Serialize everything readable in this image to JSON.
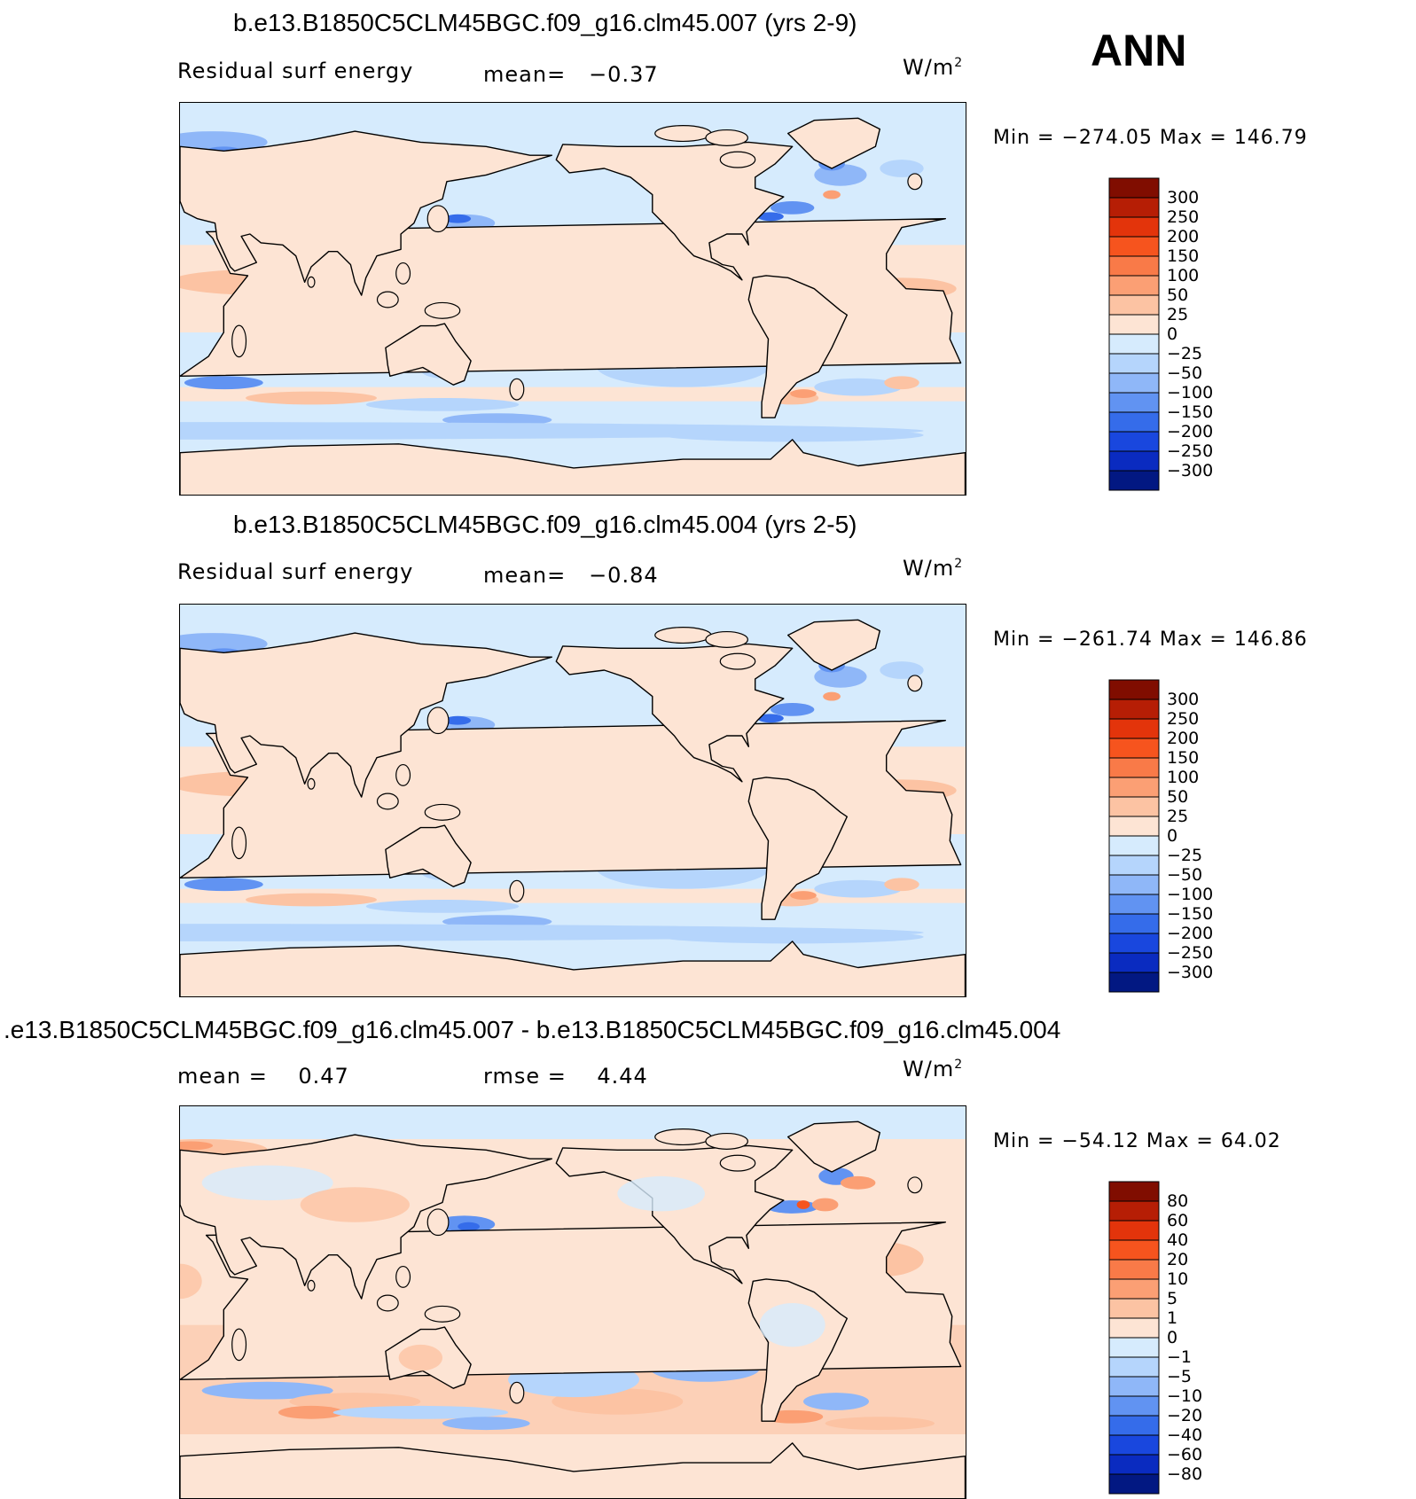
{
  "season": "ANN",
  "units_base": "W/m",
  "units_exp": "2",
  "colors": {
    "pos": [
      "#fde4d4",
      "#fcc3a3",
      "#fb9f74",
      "#f97a48",
      "#f6541e",
      "#e3340b",
      "#b61e05",
      "#800d00"
    ],
    "neg": [
      "#d6ebfd",
      "#b5d5fc",
      "#8fb7f8",
      "#6193f2",
      "#356cea",
      "#1947de",
      "#0a2bc0",
      "#021882"
    ]
  },
  "panels": [
    {
      "title": "b.e13.B1850C5CLM45BGC.f09_g16.clm45.007 (yrs 2-9)",
      "field": "Residual surf energy",
      "mean_label": "mean=",
      "mean_value": "−0.37",
      "min_label": "Min =",
      "min_value": "−274.05",
      "max_label": "Max =",
      "max_value": "146.79"
    },
    {
      "title": "b.e13.B1850C5CLM45BGC.f09_g16.clm45.004 (yrs 2-5)",
      "field": "Residual surf energy",
      "mean_label": "mean=",
      "mean_value": "−0.84",
      "min_label": "Min =",
      "min_value": "−261.74",
      "max_label": "Max =",
      "max_value": "146.86"
    },
    {
      "title": ".e13.B1850C5CLM45BGC.f09_g16.clm45.007 - b.e13.B1850C5CLM45BGC.f09_g16.clm45.004",
      "mean_label": "mean =",
      "mean_value": "0.47",
      "rmse_label": "rmse =",
      "rmse_value": "4.44",
      "min_label": "Min =",
      "min_value": "−54.12",
      "max_label": "Max =",
      "max_value": "64.02"
    }
  ],
  "chart_data": [
    {
      "type": "heatmap",
      "title": "b.e13.B1850C5CLM45BGC.f09_g16.clm45.007 (yrs 2-9)",
      "variable": "Residual surf energy",
      "units": "W/m2",
      "mean": -0.37,
      "min": -274.05,
      "max": 146.79,
      "levels": [
        300,
        250,
        200,
        150,
        100,
        50,
        25,
        0,
        -25,
        -50,
        -100,
        -150,
        -200,
        -250,
        -300
      ],
      "colorbar_labels": [
        "300",
        "250",
        "200",
        "150",
        "100",
        "50",
        "25",
        "0",
        "−25",
        "−50",
        "−100",
        "−150",
        "−200",
        "−250",
        "−300"
      ]
    },
    {
      "type": "heatmap",
      "title": "b.e13.B1850C5CLM45BGC.f09_g16.clm45.004 (yrs 2-5)",
      "variable": "Residual surf energy",
      "units": "W/m2",
      "mean": -0.84,
      "min": -261.74,
      "max": 146.86,
      "levels": [
        300,
        250,
        200,
        150,
        100,
        50,
        25,
        0,
        -25,
        -50,
        -100,
        -150,
        -200,
        -250,
        -300
      ],
      "colorbar_labels": [
        "300",
        "250",
        "200",
        "150",
        "100",
        "50",
        "25",
        "0",
        "−25",
        "−50",
        "−100",
        "−150",
        "−200",
        "−250",
        "−300"
      ]
    },
    {
      "type": "heatmap",
      "title": ".e13.B1850C5CLM45BGC.f09_g16.clm45.007 - b.e13.B1850C5CLM45BGC.f09_g16.clm45.004",
      "units": "W/m2",
      "mean": 0.47,
      "rmse": 4.44,
      "min": -54.12,
      "max": 64.02,
      "levels": [
        80,
        60,
        40,
        20,
        10,
        5,
        1,
        0,
        -1,
        -5,
        -10,
        -20,
        -40,
        -60,
        -80
      ],
      "colorbar_labels": [
        "80",
        "60",
        "40",
        "20",
        "10",
        "5",
        "1",
        "0",
        "−1",
        "−5",
        "−10",
        "−20",
        "−40",
        "−60",
        "−80"
      ]
    }
  ]
}
